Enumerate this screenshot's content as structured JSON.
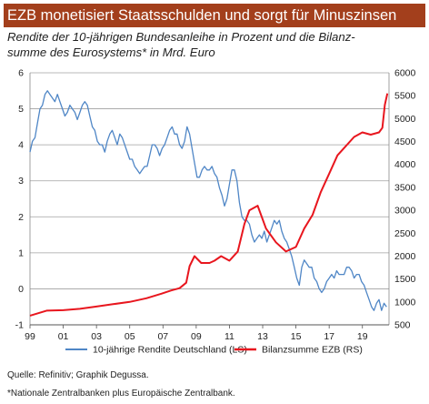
{
  "title": "EZB monetisiert Staatsschulden und sorgt für Minuszinsen",
  "subtitle_line1": "Rendite der 10-jährigen Bundesanleihe in Prozent und die Bilanz-",
  "subtitle_line2": "summe des Eurosystems* in Mrd. Euro",
  "source": "Quelle: Refinitiv; Graphik Degussa.",
  "footnote": "*Nationale Zentralbanken plus Europäische Zentralbank.",
  "colors": {
    "title_bg": "#a33f1c",
    "bund": "#4f86c6",
    "ecb": "#e8161e",
    "grid": "#a0a0a0"
  },
  "chart_data": {
    "type": "line",
    "x_ticks": [
      "99",
      "01",
      "03",
      "05",
      "07",
      "09",
      "11",
      "13",
      "15",
      "17",
      "19"
    ],
    "x_range": [
      1999,
      2020.6
    ],
    "left_axis": {
      "range": [
        -1,
        6
      ],
      "ticks": [
        "-1",
        "0",
        "1",
        "2",
        "3",
        "4",
        "5",
        "6"
      ]
    },
    "right_axis": {
      "range": [
        500,
        6000
      ],
      "ticks": [
        "500",
        "1000",
        "1500",
        "2000",
        "2500",
        "3000",
        "3500",
        "4000",
        "4500",
        "5000",
        "5500",
        "6000"
      ]
    },
    "grid": true,
    "legend_position": "bottom",
    "series": [
      {
        "name": "10-jährige Rendite Deutschland (LS)",
        "axis": "left",
        "color": "#4f86c6",
        "points": [
          [
            1999.0,
            3.8
          ],
          [
            1999.15,
            4.1
          ],
          [
            1999.3,
            4.2
          ],
          [
            1999.45,
            4.6
          ],
          [
            1999.6,
            5.0
          ],
          [
            1999.75,
            5.1
          ],
          [
            1999.9,
            5.4
          ],
          [
            2000.05,
            5.5
          ],
          [
            2000.2,
            5.4
          ],
          [
            2000.35,
            5.3
          ],
          [
            2000.5,
            5.2
          ],
          [
            2000.65,
            5.4
          ],
          [
            2000.8,
            5.2
          ],
          [
            2000.95,
            5.0
          ],
          [
            2001.1,
            4.8
          ],
          [
            2001.25,
            4.9
          ],
          [
            2001.4,
            5.1
          ],
          [
            2001.55,
            5.0
          ],
          [
            2001.7,
            4.9
          ],
          [
            2001.85,
            4.7
          ],
          [
            2002.0,
            4.9
          ],
          [
            2002.15,
            5.1
          ],
          [
            2002.3,
            5.2
          ],
          [
            2002.45,
            5.1
          ],
          [
            2002.6,
            4.8
          ],
          [
            2002.75,
            4.5
          ],
          [
            2002.9,
            4.4
          ],
          [
            2003.05,
            4.1
          ],
          [
            2003.2,
            4.0
          ],
          [
            2003.35,
            4.0
          ],
          [
            2003.5,
            3.8
          ],
          [
            2003.65,
            4.1
          ],
          [
            2003.8,
            4.3
          ],
          [
            2003.95,
            4.4
          ],
          [
            2004.1,
            4.2
          ],
          [
            2004.25,
            4.0
          ],
          [
            2004.4,
            4.3
          ],
          [
            2004.55,
            4.2
          ],
          [
            2004.7,
            4.0
          ],
          [
            2004.85,
            3.8
          ],
          [
            2005.0,
            3.6
          ],
          [
            2005.15,
            3.6
          ],
          [
            2005.3,
            3.4
          ],
          [
            2005.45,
            3.3
          ],
          [
            2005.6,
            3.2
          ],
          [
            2005.75,
            3.3
          ],
          [
            2005.9,
            3.4
          ],
          [
            2006.05,
            3.4
          ],
          [
            2006.2,
            3.7
          ],
          [
            2006.35,
            4.0
          ],
          [
            2006.5,
            4.0
          ],
          [
            2006.65,
            3.9
          ],
          [
            2006.8,
            3.7
          ],
          [
            2006.95,
            3.9
          ],
          [
            2007.1,
            4.0
          ],
          [
            2007.25,
            4.2
          ],
          [
            2007.4,
            4.4
          ],
          [
            2007.55,
            4.5
          ],
          [
            2007.7,
            4.3
          ],
          [
            2007.85,
            4.3
          ],
          [
            2008.0,
            4.0
          ],
          [
            2008.15,
            3.9
          ],
          [
            2008.3,
            4.1
          ],
          [
            2008.45,
            4.5
          ],
          [
            2008.6,
            4.3
          ],
          [
            2008.75,
            3.9
          ],
          [
            2008.9,
            3.5
          ],
          [
            2009.05,
            3.1
          ],
          [
            2009.2,
            3.1
          ],
          [
            2009.35,
            3.3
          ],
          [
            2009.5,
            3.4
          ],
          [
            2009.65,
            3.3
          ],
          [
            2009.8,
            3.3
          ],
          [
            2009.95,
            3.4
          ],
          [
            2010.1,
            3.2
          ],
          [
            2010.25,
            3.1
          ],
          [
            2010.4,
            2.8
          ],
          [
            2010.55,
            2.6
          ],
          [
            2010.7,
            2.3
          ],
          [
            2010.85,
            2.5
          ],
          [
            2011.0,
            2.9
          ],
          [
            2011.15,
            3.3
          ],
          [
            2011.3,
            3.3
          ],
          [
            2011.45,
            3.0
          ],
          [
            2011.6,
            2.4
          ],
          [
            2011.75,
            2.0
          ],
          [
            2011.9,
            1.9
          ],
          [
            2012.05,
            1.9
          ],
          [
            2012.2,
            1.8
          ],
          [
            2012.35,
            1.5
          ],
          [
            2012.5,
            1.3
          ],
          [
            2012.65,
            1.4
          ],
          [
            2012.8,
            1.5
          ],
          [
            2012.95,
            1.4
          ],
          [
            2013.1,
            1.6
          ],
          [
            2013.25,
            1.3
          ],
          [
            2013.4,
            1.5
          ],
          [
            2013.55,
            1.7
          ],
          [
            2013.7,
            1.9
          ],
          [
            2013.85,
            1.8
          ],
          [
            2014.0,
            1.9
          ],
          [
            2014.15,
            1.6
          ],
          [
            2014.3,
            1.4
          ],
          [
            2014.45,
            1.3
          ],
          [
            2014.6,
            1.1
          ],
          [
            2014.75,
            0.9
          ],
          [
            2014.9,
            0.6
          ],
          [
            2015.05,
            0.3
          ],
          [
            2015.2,
            0.1
          ],
          [
            2015.35,
            0.6
          ],
          [
            2015.5,
            0.8
          ],
          [
            2015.65,
            0.7
          ],
          [
            2015.8,
            0.6
          ],
          [
            2015.95,
            0.6
          ],
          [
            2016.1,
            0.3
          ],
          [
            2016.25,
            0.2
          ],
          [
            2016.4,
            0.0
          ],
          [
            2016.55,
            -0.1
          ],
          [
            2016.7,
            0.0
          ],
          [
            2016.85,
            0.2
          ],
          [
            2017.0,
            0.3
          ],
          [
            2017.15,
            0.4
          ],
          [
            2017.3,
            0.3
          ],
          [
            2017.45,
            0.5
          ],
          [
            2017.6,
            0.4
          ],
          [
            2017.75,
            0.4
          ],
          [
            2017.9,
            0.4
          ],
          [
            2018.05,
            0.6
          ],
          [
            2018.2,
            0.6
          ],
          [
            2018.35,
            0.5
          ],
          [
            2018.5,
            0.3
          ],
          [
            2018.65,
            0.4
          ],
          [
            2018.8,
            0.4
          ],
          [
            2018.95,
            0.2
          ],
          [
            2019.1,
            0.1
          ],
          [
            2019.25,
            -0.1
          ],
          [
            2019.4,
            -0.3
          ],
          [
            2019.55,
            -0.5
          ],
          [
            2019.7,
            -0.6
          ],
          [
            2019.85,
            -0.4
          ],
          [
            2020.0,
            -0.3
          ],
          [
            2020.15,
            -0.6
          ],
          [
            2020.3,
            -0.4
          ],
          [
            2020.45,
            -0.5
          ]
        ]
      },
      {
        "name": "Bilanzsumme EZB (RS)",
        "axis": "right",
        "color": "#e8161e",
        "points": [
          [
            1999.0,
            700
          ],
          [
            2000.0,
            810
          ],
          [
            2001.0,
            820
          ],
          [
            2002.0,
            850
          ],
          [
            2003.0,
            900
          ],
          [
            2004.0,
            950
          ],
          [
            2005.0,
            1000
          ],
          [
            2006.0,
            1080
          ],
          [
            2006.9,
            1180
          ],
          [
            2007.5,
            1250
          ],
          [
            2008.0,
            1300
          ],
          [
            2008.4,
            1420
          ],
          [
            2008.6,
            1780
          ],
          [
            2008.9,
            2000
          ],
          [
            2009.3,
            1850
          ],
          [
            2009.8,
            1850
          ],
          [
            2010.1,
            1900
          ],
          [
            2010.5,
            2000
          ],
          [
            2011.0,
            1900
          ],
          [
            2011.5,
            2100
          ],
          [
            2011.9,
            2700
          ],
          [
            2012.2,
            3000
          ],
          [
            2012.7,
            3100
          ],
          [
            2013.2,
            2600
          ],
          [
            2013.8,
            2300
          ],
          [
            2014.4,
            2100
          ],
          [
            2015.0,
            2200
          ],
          [
            2015.5,
            2600
          ],
          [
            2016.0,
            2900
          ],
          [
            2016.5,
            3400
          ],
          [
            2017.0,
            3800
          ],
          [
            2017.5,
            4200
          ],
          [
            2018.0,
            4400
          ],
          [
            2018.5,
            4600
          ],
          [
            2019.0,
            4700
          ],
          [
            2019.5,
            4650
          ],
          [
            2020.0,
            4700
          ],
          [
            2020.2,
            4800
          ],
          [
            2020.35,
            5300
          ],
          [
            2020.5,
            5550
          ]
        ]
      }
    ]
  }
}
